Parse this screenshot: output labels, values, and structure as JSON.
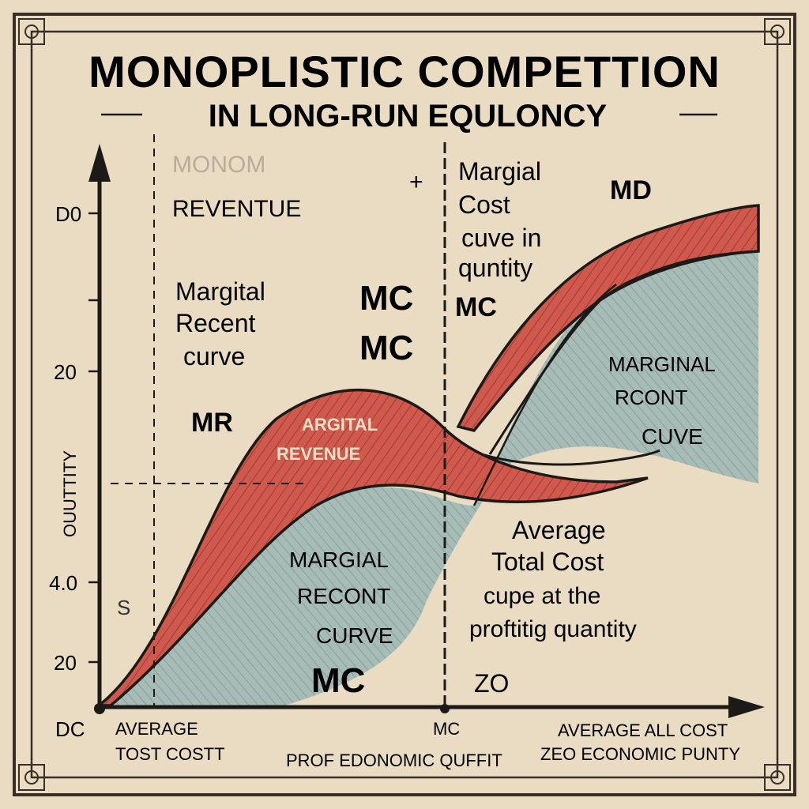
{
  "colors": {
    "paper": "#e9dcc3",
    "ink": "#1c1a17",
    "red_band": "#d0594d",
    "teal_fill": "#9fb6b0",
    "frame": "#3a2f25"
  },
  "header": {
    "title": "MONOPLISTIC COMPETTION",
    "subtitle": "IN LONG-RUN EQULONCY"
  },
  "axes": {
    "y_axis_label": "OUUTTITY",
    "y_ticks": [
      "D0",
      "20",
      "4.0",
      "20"
    ],
    "origin_label": "DC",
    "left_small_mark": "S"
  },
  "labels": {
    "monom_faded": "MONOM",
    "revenue_top": "REVENTUE",
    "margital_left": [
      "Margital",
      "Recent",
      "curve"
    ],
    "mr": "MR",
    "mc_center_1": "MC",
    "mc_center_2": "MC",
    "plus_mark": "+",
    "marginal_cost_curve": [
      "Margial",
      "Cost",
      "cuve in",
      "quntity"
    ],
    "mc_right_of_line": "MC",
    "md": "MD",
    "argital_revenue": [
      "ARGITAL",
      "REVENUE"
    ],
    "marginal_right": [
      "MARGINAL",
      "RCONT",
      "CUVE"
    ],
    "marginal_lower": [
      "MARGIAL",
      "RECONT",
      "CURVE"
    ],
    "mc_lower": "MC",
    "average_total_cost": [
      "Average",
      "Total Cost",
      "cupe at   the",
      "proftitig quantity"
    ],
    "zo": "ZO",
    "x_axis_mc": "MC"
  },
  "footer": {
    "left": [
      "AVERAGE",
      "TOST COSTT"
    ],
    "center": "PROF EDONOMIC QUFFIT",
    "right": [
      "AVERAGE ALL COST",
      "ZEO ECONOMIC PUNTY"
    ]
  }
}
